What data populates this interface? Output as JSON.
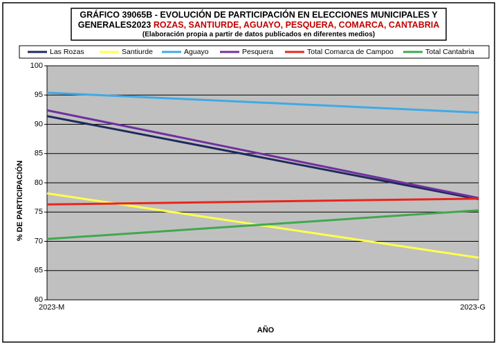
{
  "chart_data": {
    "type": "line",
    "title": [
      "GRÁFICO 39065B - EVOLUCIÓN DE PARTICIPACIÓN EN ELECCIONES MUNICIPALES Y",
      "GENERALES2023"
    ],
    "title_highlight": "ROZAS, SANTIURDE, AGUAYO, PESQUERA, COMARCA, CANTABRIA",
    "subtitle": "(Elaboración propia a partir de datos publicados en diferentes medios)",
    "x_label": "AÑO",
    "y_label": "% DE PARTICIPACIÓN",
    "categories": [
      "2023-M",
      "2023-G"
    ],
    "series": [
      {
        "name": "Las Rozas",
        "color": "#1f2a5c",
        "values": [
          91.4,
          77.2
        ]
      },
      {
        "name": "Santiurde",
        "color": "#ffff4d",
        "values": [
          78.2,
          67.2
        ]
      },
      {
        "name": "Aguayo",
        "color": "#3fa9e6",
        "values": [
          95.4,
          92.0
        ]
      },
      {
        "name": "Pesquera",
        "color": "#7030a0",
        "values": [
          92.4,
          77.4
        ]
      },
      {
        "name": "Total Comarca de Campoo",
        "color": "#e8251c",
        "values": [
          76.3,
          77.3
        ]
      },
      {
        "name": "Total Cantabria",
        "color": "#3ea84f",
        "values": [
          70.4,
          75.3
        ]
      }
    ],
    "ylim": [
      60,
      100
    ],
    "yticks": [
      60,
      65,
      70,
      75,
      80,
      85,
      90,
      95,
      100
    ],
    "grid": true,
    "legend": "top"
  }
}
